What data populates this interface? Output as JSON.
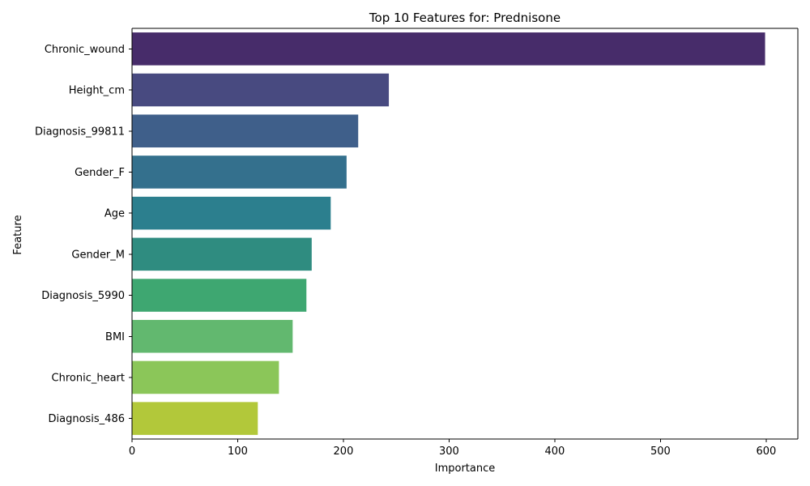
{
  "chart_data": {
    "type": "bar",
    "orientation": "horizontal",
    "title": "Top 10 Features for: Prednisone",
    "xlabel": "Importance",
    "ylabel": "Feature",
    "categories": [
      "Chronic_wound",
      "Height_cm",
      "Diagnosis_99811",
      "Gender_F",
      "Age",
      "Gender_M",
      "Diagnosis_5990",
      "BMI",
      "Chronic_heart",
      "Diagnosis_486"
    ],
    "values": [
      599,
      243,
      214,
      203,
      188,
      170,
      165,
      152,
      139,
      119
    ],
    "colors": [
      "#472c6a",
      "#484a80",
      "#3f5f8a",
      "#34708d",
      "#2c7f8e",
      "#2f8c80",
      "#3ea771",
      "#62b86f",
      "#8bc659",
      "#b2c83a"
    ],
    "xlim": [
      0,
      630
    ],
    "xticks": [
      0,
      100,
      200,
      300,
      400,
      500,
      600
    ],
    "grid": false,
    "legend": false
  }
}
